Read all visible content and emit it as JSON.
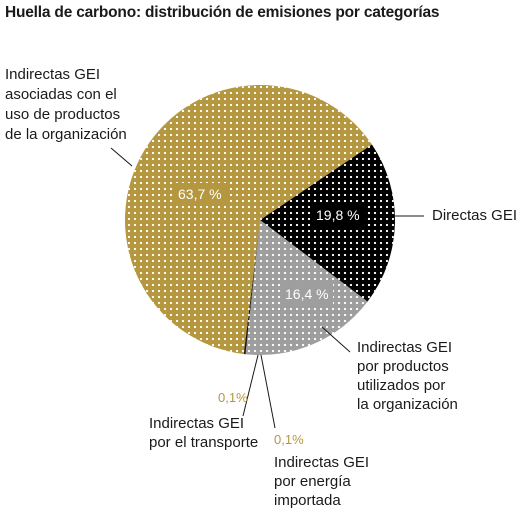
{
  "chart_data": {
    "type": "pie",
    "title": "Huella de carbono: distribución de emisiones por categorías",
    "slices": [
      {
        "label": "Directas GEI",
        "value": 19.8,
        "value_label": "19,8 %",
        "color": "#000000"
      },
      {
        "label": "Indirectas GEI por productos utilizados por la organización",
        "value": 16.4,
        "value_label": "16,4 %",
        "color": "#9e9e9e"
      },
      {
        "label": "Indirectas GEI por energía importada",
        "value": 0.1,
        "value_label": "0,1%",
        "color": "#000000"
      },
      {
        "label": "Indirectas GEI por el transporte",
        "value": 0.1,
        "value_label": "0,1%",
        "color": "#000000"
      },
      {
        "label": "Indirectas GEI asociadas con el uso de productos de la organización",
        "value": 63.7,
        "value_label": "63,7 %",
        "color": "#b5973f"
      }
    ],
    "labels": {
      "directas": [
        "Directas GEI"
      ],
      "productos_utilizados": [
        "Indirectas GEI",
        "por productos",
        "utilizados por",
        "la organización"
      ],
      "energia": [
        "Indirectas GEI",
        "por energía",
        "importada"
      ],
      "transporte": [
        "Indirectas GEI",
        "por el transporte"
      ],
      "uso_productos": [
        "Indirectas GEI",
        "asociadas con el",
        "uso de productos",
        "de la organización"
      ]
    }
  }
}
